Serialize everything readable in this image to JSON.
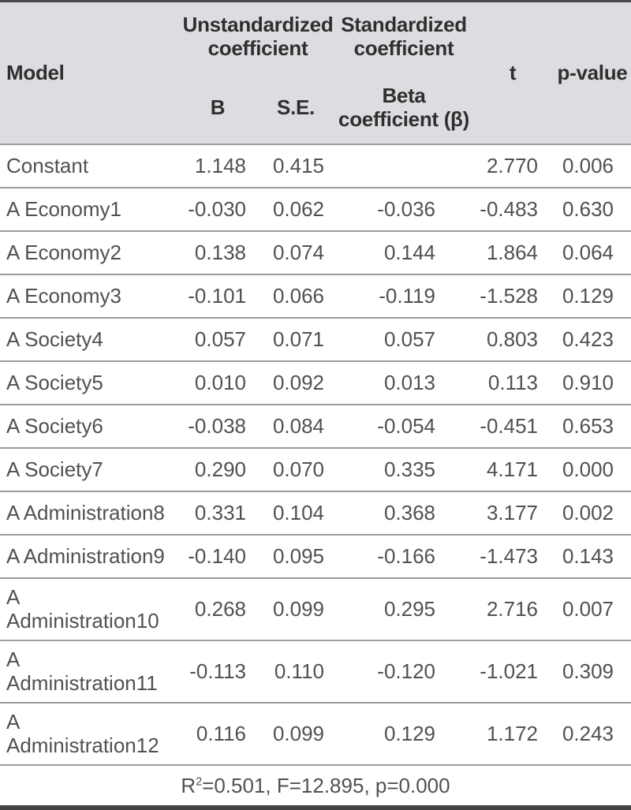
{
  "table": {
    "header": {
      "model": "Model",
      "unstandardized_group": "Unstandardized coefficient",
      "standardized_group": "Standardized coefficient",
      "b": "B",
      "se": "S.E.",
      "beta": "Beta coefficient (β)",
      "t": "t",
      "p": "p-value"
    },
    "rows": [
      {
        "model": "Constant",
        "b": "1.148",
        "se": "0.415",
        "beta": "",
        "t": "2.770",
        "p": "0.006"
      },
      {
        "model": "A Economy1",
        "b": "-0.030",
        "se": "0.062",
        "beta": "-0.036",
        "t": "-0.483",
        "p": "0.630"
      },
      {
        "model": "A Economy2",
        "b": "0.138",
        "se": "0.074",
        "beta": "0.144",
        "t": "1.864",
        "p": "0.064"
      },
      {
        "model": "A Economy3",
        "b": "-0.101",
        "se": "0.066",
        "beta": "-0.119",
        "t": "-1.528",
        "p": "0.129"
      },
      {
        "model": "A Society4",
        "b": "0.057",
        "se": "0.071",
        "beta": "0.057",
        "t": "0.803",
        "p": "0.423"
      },
      {
        "model": "A Society5",
        "b": "0.010",
        "se": "0.092",
        "beta": "0.013",
        "t": "0.113",
        "p": "0.910"
      },
      {
        "model": "A Society6",
        "b": "-0.038",
        "se": "0.084",
        "beta": "-0.054",
        "t": "-0.451",
        "p": "0.653"
      },
      {
        "model": "A Society7",
        "b": "0.290",
        "se": "0.070",
        "beta": "0.335",
        "t": "4.171",
        "p": "0.000"
      },
      {
        "model": "A Administration8",
        "b": "0.331",
        "se": "0.104",
        "beta": "0.368",
        "t": "3.177",
        "p": "0.002"
      },
      {
        "model": "A Administration9",
        "b": "-0.140",
        "se": "0.095",
        "beta": "-0.166",
        "t": "-1.473",
        "p": "0.143"
      },
      {
        "model": "A Administration10",
        "b": "0.268",
        "se": "0.099",
        "beta": "0.295",
        "t": "2.716",
        "p": "0.007"
      },
      {
        "model": "A Administration11",
        "b": "-0.113",
        "se": "0.110",
        "beta": "-0.120",
        "t": "-1.021",
        "p": "0.309"
      },
      {
        "model": "A Administration12",
        "b": "0.116",
        "se": "0.099",
        "beta": "0.129",
        "t": "1.172",
        "p": "0.243"
      }
    ],
    "footer": {
      "r_label": "R",
      "r_sup": "2",
      "summary_rest": "=0.501, F=12.895, p=0.000"
    }
  },
  "colors": {
    "header_bg": "#dcdde0",
    "rule_light": "#9c9c9c",
    "rule_heavy": "#424242",
    "header_text": "#2f2f2f",
    "body_text": "#515151"
  }
}
